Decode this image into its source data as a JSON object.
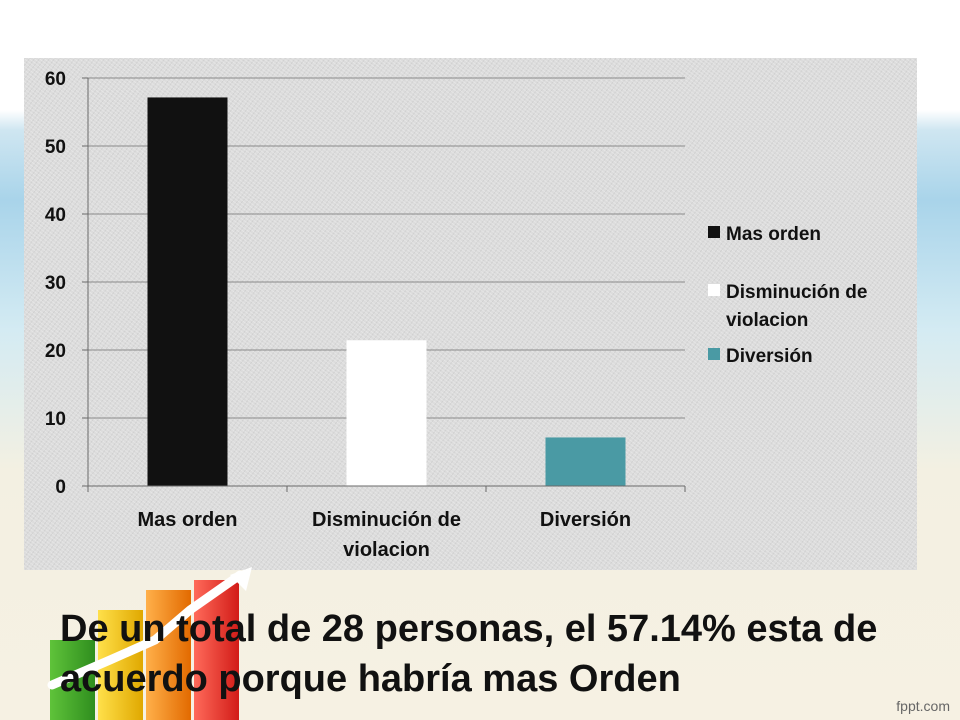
{
  "chart_data": {
    "type": "bar",
    "categories": [
      "Mas orden",
      "Disminución de violacion",
      "Diversión"
    ],
    "category_lines": [
      [
        "Mas orden"
      ],
      [
        "Disminución de",
        "violacion"
      ],
      [
        "Diversión"
      ]
    ],
    "series": [
      {
        "name": "Mas orden",
        "values": [
          57.14,
          null,
          null
        ],
        "color": "#111111"
      },
      {
        "name": "Disminución de violacion",
        "values": [
          null,
          21.43,
          null
        ],
        "color": "#ffffff"
      },
      {
        "name": "Diversión",
        "values": [
          null,
          null,
          7.14
        ],
        "color": "#4a9aa4"
      }
    ],
    "legend_lines": [
      [
        "Mas orden"
      ],
      [
        "Disminución de",
        "violacion"
      ],
      [
        "Diversión"
      ]
    ],
    "ylim": [
      0,
      60
    ],
    "yticks": [
      0,
      10,
      20,
      30,
      40,
      50,
      60
    ],
    "grid": true,
    "legend": "right",
    "title": "",
    "xlabel": "",
    "ylabel": ""
  },
  "caption": "De un total de 28 personas, el 57.14% esta de acuerdo porque habría mas Orden",
  "brand": "fppt.com"
}
